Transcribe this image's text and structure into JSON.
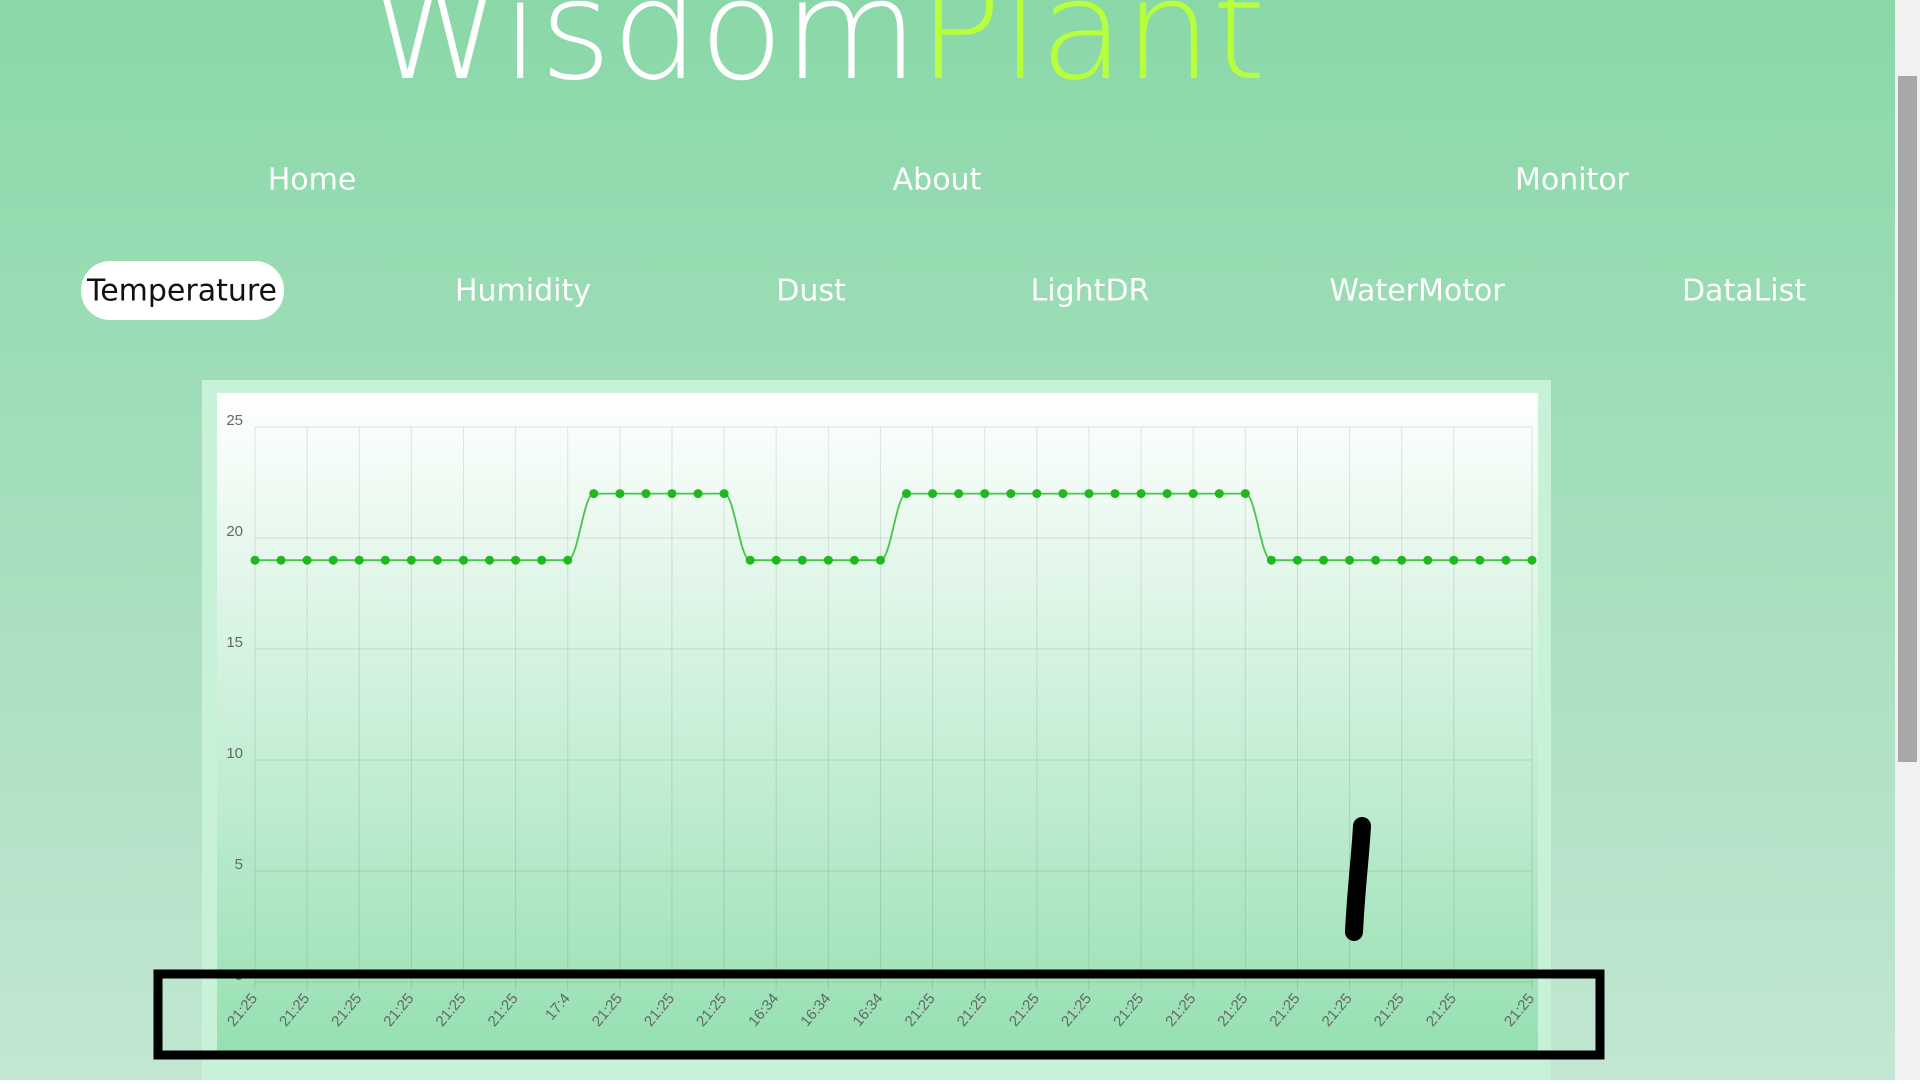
{
  "header": {
    "title_first": "Wisdom",
    "title_second": "Plant"
  },
  "nav": [
    "Home",
    "About",
    "Monitor"
  ],
  "tabs": [
    "Temperature",
    "Humidity",
    "Dust",
    "LightDR",
    "WaterMotor",
    "DataList"
  ],
  "active_tab": 0,
  "chart_data": {
    "type": "line",
    "categories": [
      "21:25",
      null,
      "21:25",
      null,
      "21:25",
      null,
      "21:25",
      null,
      "21:25",
      null,
      "21:25",
      null,
      "17:4",
      null,
      "21:25",
      null,
      "21:25",
      null,
      "21:25",
      null,
      "16:34",
      null,
      "16:34",
      null,
      "16:34",
      null,
      "21:25",
      null,
      "21:25",
      null,
      "21:25",
      null,
      "21:25",
      null,
      "21:25",
      null,
      "21:25",
      null,
      "21:25",
      null,
      "21:25",
      null,
      "21:25",
      null,
      "21:25",
      null,
      "21:25",
      null,
      null,
      "21:25"
    ],
    "series": [
      {
        "color": "#1fb81f",
        "values": [
          19,
          19,
          19,
          19,
          19,
          19,
          19,
          19,
          19,
          19,
          19,
          19,
          19,
          22,
          22,
          22,
          22,
          22,
          22,
          19,
          19,
          19,
          19,
          19,
          19,
          22,
          22,
          22,
          22,
          22,
          22,
          22,
          22,
          22,
          22,
          22,
          22,
          22,
          22,
          19,
          19,
          19,
          19,
          19,
          19,
          19,
          19,
          19,
          19,
          19
        ]
      }
    ],
    "ylim": [
      0,
      25
    ],
    "yticks": [
      0,
      5,
      10,
      15,
      20,
      25
    ],
    "grid": true
  }
}
